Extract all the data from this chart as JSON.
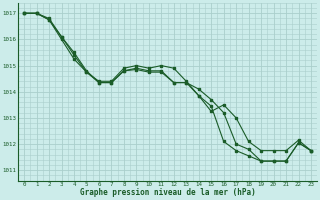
{
  "title": "Graphe pression niveau de la mer (hPa)",
  "background_color": "#ccecea",
  "grid_color": "#aacfcc",
  "line_color": "#1a5c28",
  "xlim": [
    -0.5,
    23.5
  ],
  "ylim": [
    1010.6,
    1017.4
  ],
  "yticks": [
    1011,
    1012,
    1013,
    1014,
    1015,
    1016,
    1017
  ],
  "xticks": [
    0,
    1,
    2,
    3,
    4,
    5,
    6,
    7,
    8,
    9,
    10,
    11,
    12,
    13,
    14,
    15,
    16,
    17,
    18,
    19,
    20,
    21,
    22,
    23
  ],
  "series1": [
    1017.0,
    1017.0,
    1016.8,
    1016.1,
    1015.5,
    1014.8,
    1014.35,
    1014.35,
    1014.8,
    1014.9,
    1014.8,
    1014.8,
    1014.35,
    1014.35,
    1014.1,
    1013.7,
    1013.2,
    1012.0,
    1011.8,
    1011.35,
    1011.35,
    1011.35,
    1012.05,
    1011.75
  ],
  "series2": [
    1017.0,
    1017.0,
    1016.75,
    1016.1,
    1015.4,
    1014.75,
    1014.35,
    1014.35,
    1014.8,
    1014.85,
    1014.75,
    1014.75,
    1014.35,
    1014.35,
    1013.85,
    1013.45,
    1012.1,
    1011.75,
    1011.55,
    1011.35,
    1011.35,
    1011.35,
    1012.05,
    1011.75
  ],
  "series3": [
    1017.0,
    1017.0,
    1016.75,
    1016.0,
    1015.25,
    1014.75,
    1014.4,
    1014.4,
    1014.9,
    1015.0,
    1014.9,
    1015.0,
    1014.9,
    1014.4,
    1013.85,
    1013.25,
    1013.5,
    1013.0,
    1012.1,
    1011.75,
    1011.75,
    1011.75,
    1012.15,
    1011.75
  ]
}
